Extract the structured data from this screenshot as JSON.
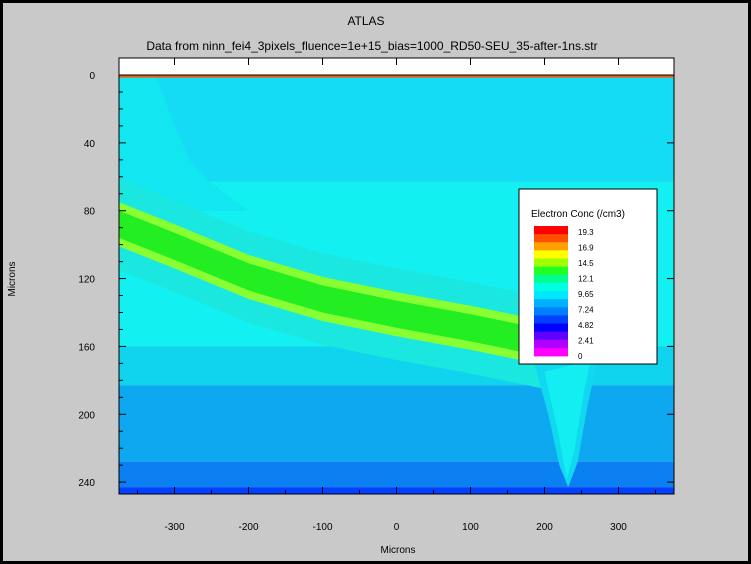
{
  "chart_data": {
    "type": "heatmap",
    "title": "ATLAS",
    "subtitle": "Data from ninn_fei4_3pixels_fluence=1e+15_bias=1000_RD50-SEU_35-after-1ns.str",
    "xlabel": "Microns",
    "ylabel": "Microns",
    "xlim": [
      -375,
      375
    ],
    "ylim": [
      0,
      247
    ],
    "y_inverted": true,
    "x_ticks": [
      "-300",
      "-200",
      "-100",
      "0",
      "100",
      "200",
      "300"
    ],
    "y_ticks": [
      "0",
      "40",
      "80",
      "120",
      "160",
      "200",
      "240"
    ],
    "grid": false,
    "legend": {
      "title": "Electron Conc (/cm3)",
      "position": "right",
      "levels": [
        "19.3",
        "16.9",
        "14.5",
        "12.1",
        "9.65",
        "7.24",
        "4.82",
        "2.41",
        "0"
      ],
      "colors": [
        "#ff0000",
        "#ff5000",
        "#ffa000",
        "#ffff00",
        "#a0ff00",
        "#22ff22",
        "#00ff90",
        "#00ffe0",
        "#00e8ff",
        "#00b0ff",
        "#0080ff",
        "#0040ff",
        "#0000ff",
        "#6000ff",
        "#b000ff",
        "#ff00ff"
      ]
    },
    "bands": [
      {
        "y_range": [
          0,
          63
        ],
        "color": "#14dcf4"
      },
      {
        "y_range": [
          63,
          160
        ],
        "color": "#12f0f2"
      },
      {
        "y_range": [
          160,
          183
        ],
        "color": "#10d4ee"
      },
      {
        "y_range": [
          183,
          228
        ],
        "color": "#0ea8f0"
      },
      {
        "y_range": [
          228,
          243
        ],
        "color": "#0a80f2"
      },
      {
        "y_range": [
          243,
          247
        ],
        "color": "#0440ff"
      }
    ],
    "band_core": {
      "color": "#22ee22",
      "halo_color": "#88ff33",
      "centerline": [
        {
          "x": -375,
          "y": 88
        },
        {
          "x": -300,
          "y": 101
        },
        {
          "x": -200,
          "y": 119
        },
        {
          "x": -100,
          "y": 132
        },
        {
          "x": 0,
          "y": 141
        },
        {
          "x": 100,
          "y": 149
        },
        {
          "x": 200,
          "y": 158
        },
        {
          "x": 240,
          "y": 164
        }
      ],
      "half_width": 8,
      "halo_half_width": 13
    },
    "surface_layer": {
      "y_range": [
        0,
        1.5
      ],
      "color": "#ff5500"
    }
  }
}
